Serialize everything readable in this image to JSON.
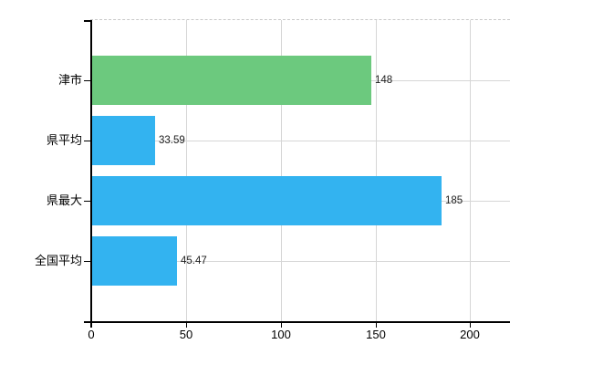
{
  "window": {
    "background": "#ffffff"
  },
  "chart_data": {
    "type": "bar",
    "orientation": "horizontal",
    "title": "",
    "xlabel": "",
    "ylabel": "",
    "categories": [
      "津市",
      "県平均",
      "県最大",
      "全国平均"
    ],
    "values": [
      148,
      33.59,
      185,
      45.47
    ],
    "value_labels": [
      "148",
      "33.59",
      "185",
      "45.47"
    ],
    "bar_colors": [
      "#6cc97e",
      "#33b3f0",
      "#33b3f0",
      "#33b3f0"
    ],
    "xlim": [
      0,
      221
    ],
    "x_tick_values": [
      0,
      50,
      100,
      150,
      200
    ],
    "x_ticks": [
      "0",
      "50",
      "100",
      "150",
      "200"
    ],
    "grid": true,
    "legend": false,
    "colors": {
      "axis": "#000000",
      "gridline": "#d6d6d6",
      "top_border": "#c9c9c9",
      "category_label": "#000000",
      "tick_label": "#000000",
      "value_label": "#1c1c1c"
    }
  }
}
